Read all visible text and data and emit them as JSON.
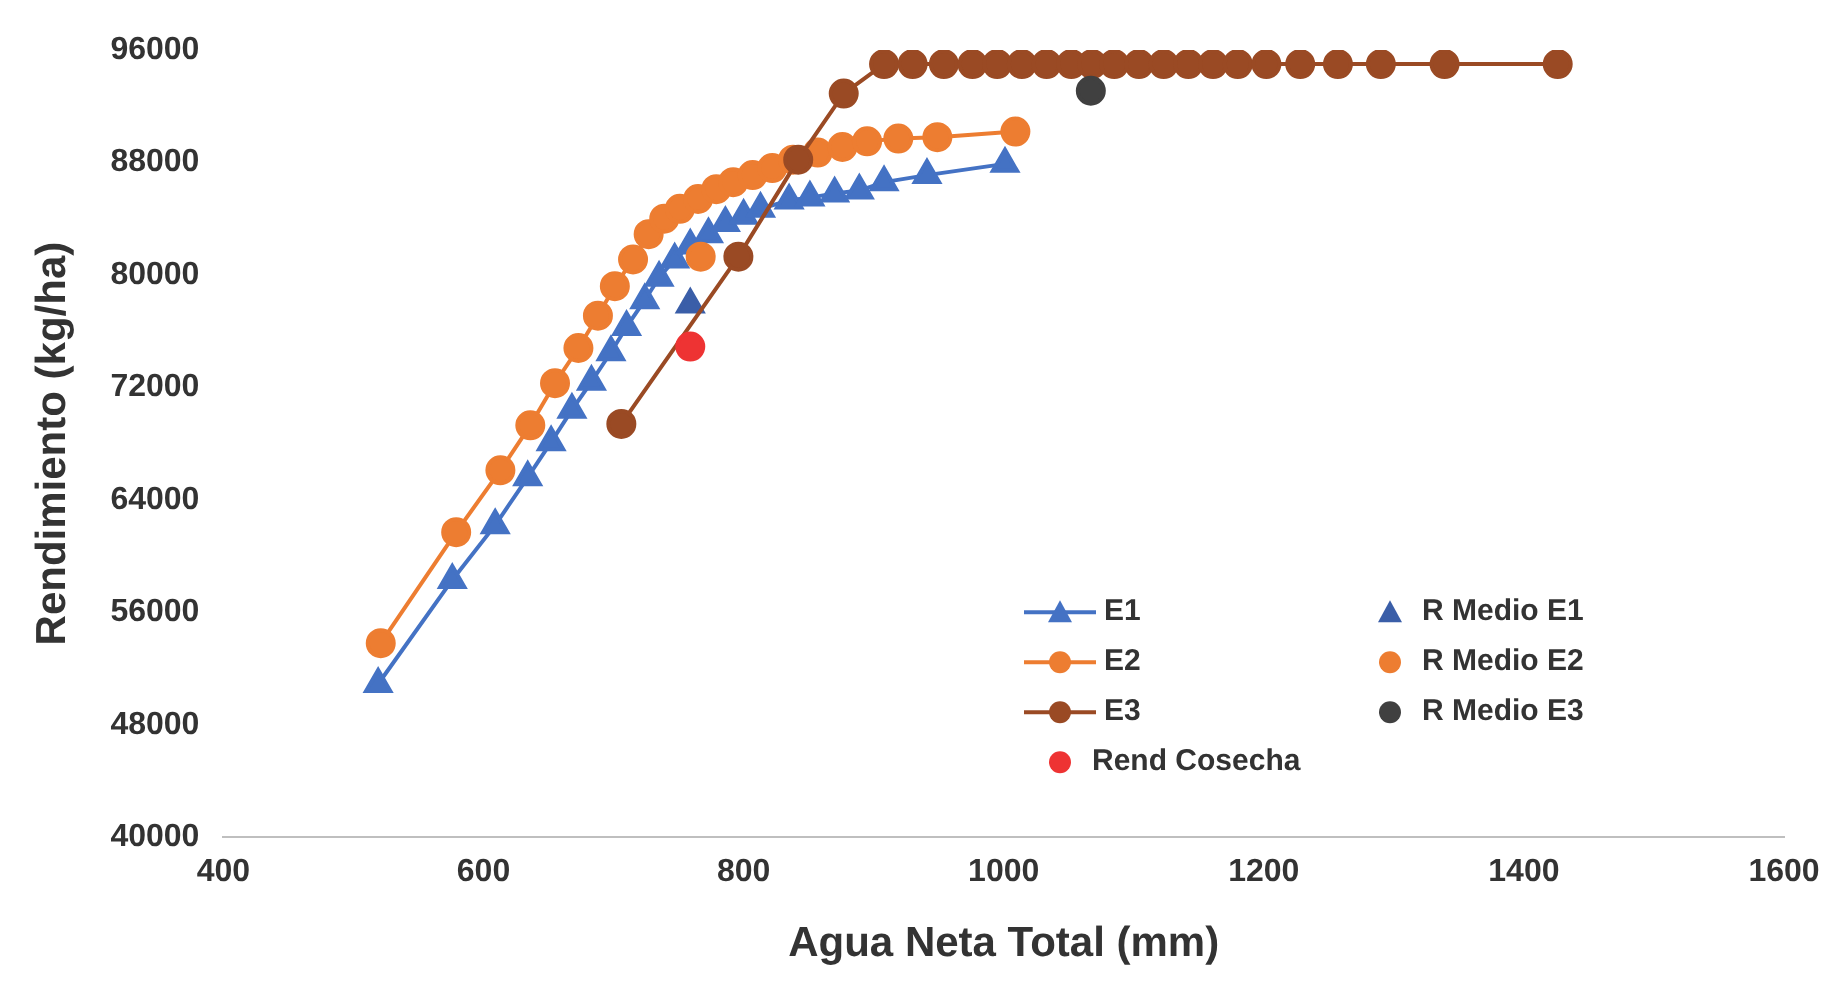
{
  "chart_data": {
    "type": "line",
    "xlabel": "Agua Neta Total (mm)",
    "ylabel": "Rendimiento (kg/ha)",
    "xlim": [
      400,
      1600
    ],
    "xticks": [
      400,
      600,
      800,
      1000,
      1200,
      1400,
      1600
    ],
    "ylim": [
      40000,
      96000
    ],
    "yticks": [
      40000,
      48000,
      56000,
      64000,
      72000,
      80000,
      88000,
      96000
    ],
    "grid": false,
    "legend": "bottom right",
    "series": [
      {
        "name": "E1",
        "marker": "triangle",
        "color": "#4472c4",
        "x": [
          519,
          576,
          609,
          634,
          652,
          668,
          683,
          698,
          710,
          724,
          735,
          747,
          759,
          773,
          786,
          800,
          813,
          835,
          851,
          870,
          889,
          908,
          941,
          1001
        ],
        "values": [
          50900,
          58300,
          62200,
          65600,
          68100,
          70400,
          72400,
          74500,
          76300,
          78200,
          79800,
          81100,
          82100,
          82900,
          83700,
          84200,
          84700,
          85300,
          85500,
          85800,
          86000,
          86600,
          87100,
          87900
        ]
      },
      {
        "name": "R Medio E1",
        "type": "scatter",
        "marker": "triangle",
        "color": "#3a5ea8",
        "x": [
          759
        ],
        "values": [
          77900
        ]
      },
      {
        "name": "E2",
        "marker": "circle",
        "color": "#ed7d31",
        "x": [
          521,
          579,
          613,
          636,
          655,
          673,
          688,
          701,
          715,
          727,
          739,
          751,
          765,
          779,
          792,
          807,
          822,
          838,
          857,
          876,
          895,
          919,
          949,
          1009
        ],
        "values": [
          53800,
          61700,
          66100,
          69300,
          72300,
          74800,
          77100,
          79200,
          81100,
          82900,
          84000,
          84700,
          85400,
          86100,
          86600,
          87100,
          87600,
          88200,
          88700,
          89100,
          89500,
          89700,
          89800,
          90200
        ]
      },
      {
        "name": "R Medio E2",
        "type": "scatter",
        "marker": "circle",
        "color": "#ed7d31",
        "x": [
          767
        ],
        "values": [
          81300
        ]
      },
      {
        "name": "E3",
        "marker": "circle",
        "color": "#9a4a24",
        "x": [
          706,
          796,
          842,
          877,
          908,
          930,
          954,
          976,
          995,
          1014,
          1033,
          1052,
          1068,
          1085,
          1104,
          1123,
          1142,
          1161,
          1180,
          1202,
          1228,
          1257,
          1290,
          1339,
          1426
        ],
        "values": [
          69400,
          81300,
          88200,
          92900,
          95000,
          95000,
          95000,
          95000,
          95000,
          95000,
          95000,
          95000,
          95000,
          95000,
          95000,
          95000,
          95000,
          95000,
          95000,
          95000,
          95000,
          95000,
          95000,
          95000,
          95000
        ]
      },
      {
        "name": "R Medio E3",
        "type": "scatter",
        "marker": "circle",
        "color": "#404040",
        "x": [
          1067
        ],
        "values": [
          93100
        ]
      },
      {
        "name": "Rend Cosecha",
        "type": "scatter",
        "marker": "circle",
        "color": "#ee3333",
        "x": [
          759
        ],
        "values": [
          74900
        ]
      }
    ]
  }
}
